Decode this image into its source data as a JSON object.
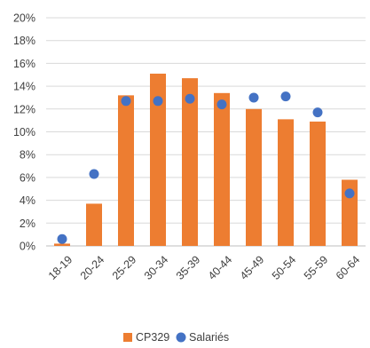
{
  "chart_data": {
    "type": "bar",
    "categories": [
      "18-19",
      "20-24",
      "25-29",
      "30-34",
      "35-39",
      "40-44",
      "45-49",
      "50-54",
      "55-59",
      "60-64"
    ],
    "series": [
      {
        "name": "CP329",
        "kind": "bar",
        "color": "#ED7D31",
        "values": [
          0.2,
          3.7,
          13.2,
          15.1,
          14.7,
          13.4,
          12.0,
          11.1,
          10.9,
          5.8
        ]
      },
      {
        "name": "Salariés",
        "kind": "scatter",
        "color": "#4472C4",
        "values": [
          0.6,
          6.3,
          12.7,
          12.7,
          12.9,
          12.4,
          13.0,
          13.1,
          11.7,
          4.6
        ]
      }
    ],
    "ylim": [
      0,
      20
    ],
    "yticks": [
      "0%",
      "2%",
      "4%",
      "6%",
      "8%",
      "10%",
      "12%",
      "14%",
      "16%",
      "18%",
      "20%"
    ],
    "grid": true,
    "legend": "bottom"
  }
}
